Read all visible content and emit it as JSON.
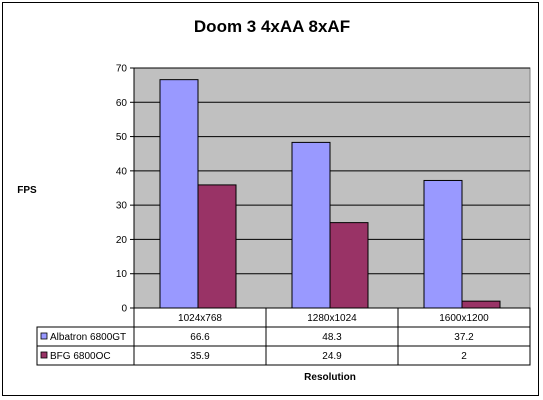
{
  "chart_data": {
    "type": "bar",
    "title": "Doom 3 4xAA 8xAF",
    "xlabel": "Resolution",
    "ylabel": "FPS",
    "ylim": [
      0,
      70
    ],
    "yticks": [
      0,
      10,
      20,
      30,
      40,
      50,
      60,
      70
    ],
    "categories": [
      "1024x768",
      "1280x1024",
      "1600x1200"
    ],
    "series": [
      {
        "name": "Albatron 6800GT",
        "color": "#9999ff",
        "values": [
          66.6,
          48.3,
          37.2
        ],
        "labels": [
          "66.6",
          "48.3",
          "37.2"
        ]
      },
      {
        "name": "BFG 6800OC",
        "color": "#993366",
        "values": [
          35.9,
          24.9,
          2
        ],
        "labels": [
          "35.9",
          "24.9",
          "2"
        ]
      }
    ],
    "grid": true,
    "plot_background": "#c0c0c0",
    "legend": "data-table"
  }
}
